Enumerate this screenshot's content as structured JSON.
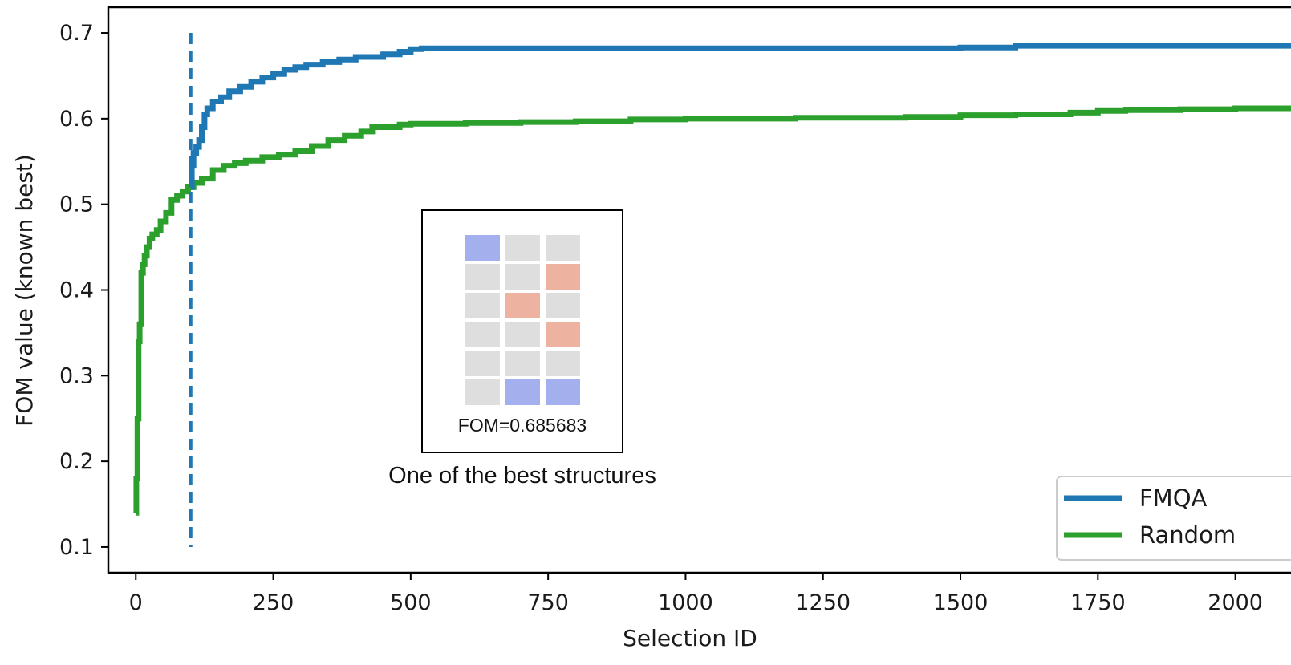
{
  "chart_data": {
    "type": "line",
    "xlabel": "Selection ID",
    "ylabel": "FOM value (known best)",
    "xlim": [
      -50,
      2110
    ],
    "ylim": [
      0.07,
      0.73
    ],
    "x_ticks": [
      0,
      250,
      500,
      750,
      1000,
      1250,
      1500,
      1750,
      2000
    ],
    "y_ticks": [
      0.1,
      0.2,
      0.3,
      0.4,
      0.5,
      0.6,
      0.7
    ],
    "x_tick_labels": [
      "0",
      "250",
      "500",
      "750",
      "1000",
      "1250",
      "1500",
      "1750",
      "2000"
    ],
    "y_tick_labels": [
      "0.1",
      "0.2",
      "0.3",
      "0.4",
      "0.5",
      "0.6",
      "0.7"
    ],
    "grid": false,
    "legend_position": "bottom-right",
    "vline": {
      "x": 100,
      "ymin": 0.1,
      "ymax": 0.7,
      "style": "dashed",
      "color": "#1f77b4"
    },
    "series": [
      {
        "name": "FMQA",
        "color": "#1f77b4",
        "x": [
          100,
          102,
          105,
          110,
          115,
          120,
          125,
          130,
          140,
          155,
          170,
          190,
          210,
          230,
          250,
          270,
          290,
          310,
          340,
          370,
          400,
          450,
          480,
          500,
          520,
          700,
          1000,
          1300,
          1500,
          1600,
          2110
        ],
        "y": [
          0.52,
          0.545,
          0.56,
          0.567,
          0.575,
          0.59,
          0.605,
          0.612,
          0.62,
          0.625,
          0.632,
          0.637,
          0.643,
          0.648,
          0.652,
          0.657,
          0.66,
          0.663,
          0.666,
          0.669,
          0.672,
          0.675,
          0.678,
          0.681,
          0.682,
          0.682,
          0.682,
          0.682,
          0.683,
          0.685,
          0.685
        ]
      },
      {
        "name": "Random",
        "color": "#2ca02c",
        "x": [
          0,
          1,
          3,
          5,
          7,
          10,
          13,
          16,
          20,
          25,
          30,
          38,
          45,
          55,
          65,
          75,
          85,
          95,
          105,
          120,
          140,
          160,
          180,
          200,
          230,
          260,
          290,
          320,
          350,
          380,
          410,
          430,
          450,
          480,
          500,
          600,
          700,
          800,
          900,
          1000,
          1200,
          1400,
          1500,
          1600,
          1700,
          1750,
          1800,
          1900,
          2000,
          2110
        ],
        "y": [
          0.14,
          0.18,
          0.25,
          0.34,
          0.36,
          0.42,
          0.43,
          0.44,
          0.45,
          0.46,
          0.465,
          0.47,
          0.48,
          0.49,
          0.505,
          0.51,
          0.515,
          0.52,
          0.525,
          0.53,
          0.54,
          0.545,
          0.548,
          0.551,
          0.555,
          0.558,
          0.562,
          0.568,
          0.575,
          0.58,
          0.585,
          0.59,
          0.59,
          0.593,
          0.594,
          0.595,
          0.596,
          0.597,
          0.599,
          0.6,
          0.601,
          0.602,
          0.604,
          0.605,
          0.607,
          0.609,
          0.61,
          0.611,
          0.612,
          0.613
        ]
      }
    ],
    "inset": {
      "label": "FOM=0.685683",
      "caption": "One of the best structures",
      "grid_rows": 6,
      "grid_cols": 3,
      "cell_states": [
        [
          "blue",
          "gray",
          "gray"
        ],
        [
          "gray",
          "gray",
          "red"
        ],
        [
          "gray",
          "red",
          "gray"
        ],
        [
          "gray",
          "gray",
          "red"
        ],
        [
          "gray",
          "gray",
          "gray"
        ],
        [
          "gray",
          "blue",
          "blue"
        ]
      ],
      "colors": {
        "blue": "#a4b0ee",
        "red": "#edb2a0",
        "gray": "#dedede"
      }
    }
  }
}
